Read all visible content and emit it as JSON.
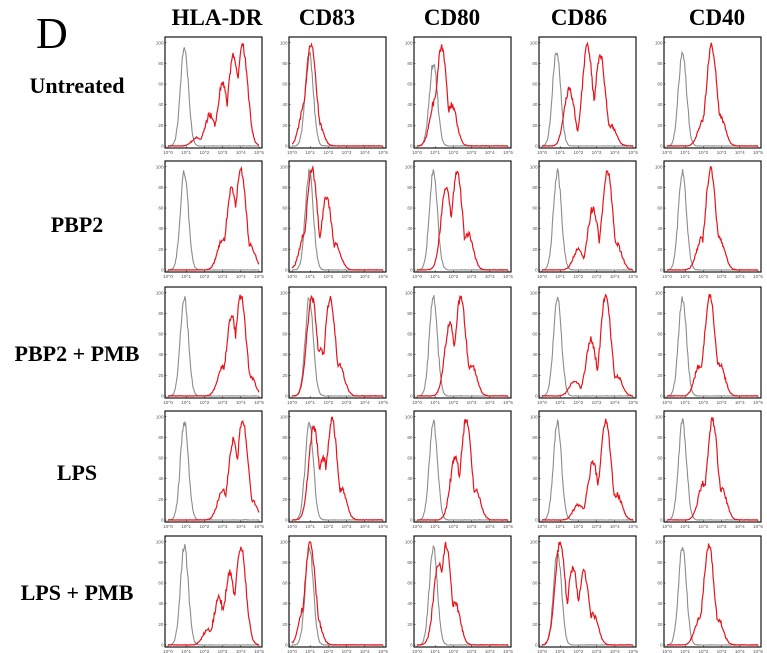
{
  "panel_label": "D",
  "columns": [
    "HLA-DR",
    "CD83",
    "CD80",
    "CD86",
    "CD40"
  ],
  "rows": [
    "Untreated",
    "PBP2",
    "PBP2 + PMB",
    "LPS",
    "LPS + PMB"
  ],
  "colors": {
    "isotype": "#8c8c8c",
    "stained": "#e8141b",
    "frame": "#000000"
  },
  "chart_data": {
    "type": "histogram-grid",
    "x_scale": "log",
    "xlim": [
      1,
      100000
    ],
    "ylim": [
      0,
      100
    ],
    "y_ticks": [
      "0",
      "20",
      "40",
      "60",
      "80",
      "100"
    ],
    "x_ticks": [
      "10^0",
      "10^1",
      "10^2",
      "10^3",
      "10^4",
      "10^5"
    ],
    "series_styles": {
      "isotype": "gray",
      "stained": "red"
    },
    "note_isotype": "gray isotype-control histogram: single peak near 10^0–10^1",
    "histograms": {
      "Untreated": {
        "HLA-DR": {
          "isotype": [
            [
              0.9,
              95
            ]
          ],
          "stained": [
            [
              4.1,
              96
            ],
            [
              3.6,
              88
            ],
            [
              3.0,
              60
            ],
            [
              2.3,
              30
            ],
            [
              1.6,
              8
            ]
          ]
        },
        "CD83": {
          "isotype": [
            [
              0.95,
              90
            ]
          ],
          "stained": [
            [
              1.05,
              98
            ],
            [
              0.7,
              40
            ],
            [
              1.4,
              25
            ]
          ]
        },
        "CD80": {
          "isotype": [
            [
              0.9,
              80
            ]
          ],
          "stained": [
            [
              1.35,
              96
            ],
            [
              1.9,
              40
            ],
            [
              1.0,
              45
            ]
          ]
        },
        "CD86": {
          "isotype": [
            [
              0.8,
              92
            ]
          ],
          "stained": [
            [
              2.5,
              97
            ],
            [
              1.5,
              55
            ],
            [
              3.2,
              88
            ],
            [
              3.8,
              20
            ]
          ]
        },
        "CD40": {
          "isotype": [
            [
              0.85,
              92
            ]
          ],
          "stained": [
            [
              2.45,
              97
            ],
            [
              2.0,
              25
            ],
            [
              2.9,
              30
            ]
          ]
        }
      },
      "PBP2": {
        "HLA-DR": {
          "isotype": [
            [
              0.9,
              95
            ]
          ],
          "stained": [
            [
              4.0,
              97
            ],
            [
              3.5,
              80
            ],
            [
              3.0,
              30
            ],
            [
              4.5,
              25
            ]
          ]
        },
        "CD83": {
          "isotype": [
            [
              0.95,
              95
            ]
          ],
          "stained": [
            [
              1.1,
              98
            ],
            [
              1.9,
              70
            ],
            [
              2.4,
              25
            ],
            [
              0.7,
              35
            ]
          ]
        },
        "CD80": {
          "isotype": [
            [
              0.9,
              95
            ]
          ],
          "stained": [
            [
              2.2,
              95
            ],
            [
              1.6,
              80
            ],
            [
              2.8,
              35
            ]
          ]
        },
        "CD86": {
          "isotype": [
            [
              0.85,
              95
            ]
          ],
          "stained": [
            [
              3.6,
              95
            ],
            [
              2.8,
              60
            ],
            [
              2.0,
              20
            ],
            [
              4.1,
              25
            ]
          ]
        },
        "CD40": {
          "isotype": [
            [
              0.85,
              95
            ]
          ],
          "stained": [
            [
              2.4,
              97
            ],
            [
              1.9,
              30
            ],
            [
              2.9,
              30
            ]
          ]
        }
      },
      "PBP2 + PMB": {
        "HLA-DR": {
          "isotype": [
            [
              0.9,
              95
            ]
          ],
          "stained": [
            [
              4.0,
              97
            ],
            [
              3.5,
              78
            ],
            [
              3.0,
              28
            ],
            [
              4.5,
              20
            ]
          ]
        },
        "CD83": {
          "isotype": [
            [
              0.95,
              95
            ]
          ],
          "stained": [
            [
              1.1,
              95
            ],
            [
              2.1,
              95
            ],
            [
              1.6,
              45
            ],
            [
              2.6,
              30
            ]
          ]
        },
        "CD80": {
          "isotype": [
            [
              0.9,
              95
            ]
          ],
          "stained": [
            [
              2.4,
              97
            ],
            [
              1.8,
              70
            ],
            [
              3.0,
              30
            ]
          ]
        },
        "CD86": {
          "isotype": [
            [
              0.85,
              95
            ]
          ],
          "stained": [
            [
              3.5,
              97
            ],
            [
              2.7,
              55
            ],
            [
              1.8,
              15
            ],
            [
              4.1,
              20
            ]
          ]
        },
        "CD40": {
          "isotype": [
            [
              0.85,
              95
            ]
          ],
          "stained": [
            [
              2.35,
              97
            ],
            [
              1.8,
              30
            ],
            [
              2.9,
              30
            ]
          ]
        }
      },
      "LPS": {
        "HLA-DR": {
          "isotype": [
            [
              0.9,
              95
            ]
          ],
          "stained": [
            [
              4.1,
              97
            ],
            [
              3.6,
              78
            ],
            [
              3.0,
              28
            ],
            [
              4.6,
              20
            ]
          ]
        },
        "CD83": {
          "isotype": [
            [
              0.95,
              95
            ]
          ],
          "stained": [
            [
              1.2,
              90
            ],
            [
              2.2,
              97
            ],
            [
              1.7,
              60
            ],
            [
              2.7,
              30
            ]
          ]
        },
        "CD80": {
          "isotype": [
            [
              0.9,
              95
            ]
          ],
          "stained": [
            [
              2.7,
              97
            ],
            [
              2.1,
              60
            ],
            [
              3.2,
              30
            ]
          ]
        },
        "CD86": {
          "isotype": [
            [
              0.85,
              95
            ]
          ],
          "stained": [
            [
              3.5,
              97
            ],
            [
              2.8,
              55
            ],
            [
              2.0,
              15
            ],
            [
              4.1,
              25
            ]
          ]
        },
        "CD40": {
          "isotype": [
            [
              0.85,
              95
            ]
          ],
          "stained": [
            [
              2.5,
              97
            ],
            [
              2.0,
              35
            ],
            [
              3.0,
              30
            ]
          ]
        }
      },
      "LPS + PMB": {
        "HLA-DR": {
          "isotype": [
            [
              0.9,
              95
            ]
          ],
          "stained": [
            [
              4.0,
              95
            ],
            [
              3.4,
              70
            ],
            [
              2.8,
              45
            ],
            [
              2.2,
              15
            ]
          ]
        },
        "CD83": {
          "isotype": [
            [
              0.95,
              95
            ]
          ],
          "stained": [
            [
              1.0,
              100
            ],
            [
              0.7,
              40
            ],
            [
              1.3,
              30
            ]
          ]
        },
        "CD80": {
          "isotype": [
            [
              0.9,
              95
            ]
          ],
          "stained": [
            [
              1.6,
              97
            ],
            [
              1.2,
              80
            ],
            [
              2.1,
              40
            ]
          ]
        },
        "CD86": {
          "isotype": [
            [
              0.85,
              90
            ]
          ],
          "stained": [
            [
              1.0,
              100
            ],
            [
              1.7,
              75
            ],
            [
              2.3,
              70
            ],
            [
              2.8,
              30
            ]
          ]
        },
        "CD40": {
          "isotype": [
            [
              0.85,
              95
            ]
          ],
          "stained": [
            [
              2.3,
              97
            ],
            [
              1.8,
              25
            ],
            [
              2.8,
              25
            ]
          ]
        }
      }
    }
  }
}
